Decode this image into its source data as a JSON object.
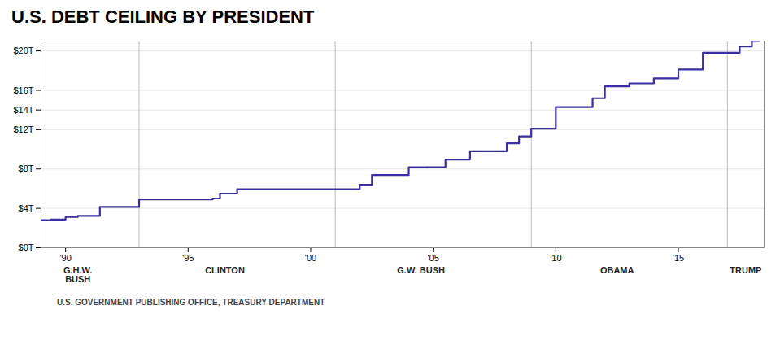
{
  "chart_data": {
    "type": "line",
    "line_style": "step",
    "title": "U.S. DEBT CEILING BY PRESIDENT",
    "source": "U.S. GOVERNMENT PUBLISHING OFFICE, TREASURY DEPARTMENT",
    "color": "#3a2fa0",
    "grid": "y",
    "x": [
      1989.0,
      1989.4,
      1990.0,
      1990.5,
      1991.0,
      1991.4,
      1992.0,
      1992.5,
      1993.0,
      1993.0,
      1993.5,
      1994.0,
      1995.0,
      1995.5,
      1996.0,
      1996.3,
      1997.0,
      1997.5,
      1998.0,
      1999.0,
      2000.0,
      2001.0,
      2001.0,
      2002.0,
      2002.5,
      2003.0,
      2003.5,
      2004.0,
      2004.5,
      2004.8,
      2005.0,
      2005.5,
      2006.0,
      2006.5,
      2007.0,
      2007.5,
      2008.0,
      2008.5,
      2008.9,
      2009.0,
      2009.3,
      2009.6,
      2010.0,
      2010.3,
      2011.0,
      2011.5,
      2012.0,
      2012.3,
      2013.0,
      2013.5,
      2014.0,
      2014.5,
      2015.0,
      2015.5,
      2016.0,
      2016.5,
      2017.0,
      2017.2,
      2017.5,
      2018.0,
      2018.3
    ],
    "values": [
      2.8,
      2.87,
      3.123,
      3.23,
      3.23,
      4.145,
      4.145,
      4.145,
      4.145,
      4.9,
      4.9,
      4.9,
      4.9,
      4.9,
      5.0,
      5.5,
      5.95,
      5.95,
      5.95,
      5.95,
      5.95,
      5.95,
      5.95,
      6.4,
      7.384,
      7.384,
      7.384,
      8.18,
      8.18,
      8.184,
      8.184,
      8.965,
      8.965,
      9.815,
      9.815,
      9.815,
      10.615,
      11.315,
      11.315,
      12.104,
      12.104,
      12.104,
      14.294,
      14.294,
      14.294,
      15.194,
      16.394,
      16.394,
      16.699,
      16.699,
      17.212,
      17.212,
      18.113,
      18.113,
      19.808,
      19.808,
      19.808,
      19.808,
      20.456,
      21.0,
      21.0
    ],
    "xlim": [
      1989.0,
      2018.5
    ],
    "ylim": [
      0,
      21
    ],
    "xticks": [
      {
        "value": 1990,
        "label": "'90"
      },
      {
        "value": 1995,
        "label": "'95"
      },
      {
        "value": 2000,
        "label": "'00"
      },
      {
        "value": 2005,
        "label": "'05"
      },
      {
        "value": 2010,
        "label": "'10"
      },
      {
        "value": 2015,
        "label": "'15"
      }
    ],
    "yticks": [
      {
        "value": 0,
        "label": "$0T"
      },
      {
        "value": 4,
        "label": "$4T"
      },
      {
        "value": 8,
        "label": "$8T"
      },
      {
        "value": 12,
        "label": "$12T"
      },
      {
        "value": 14,
        "label": "$14T"
      },
      {
        "value": 16,
        "label": "$16T"
      },
      {
        "value": 20,
        "label": "$20T"
      }
    ],
    "vlines": [
      1993,
      2001,
      2009,
      2017
    ],
    "annotations": [
      {
        "text": "G.H.W.\nBUSH",
        "x": 1990.5
      },
      {
        "text": "CLINTON",
        "x": 1996.5
      },
      {
        "text": "G.W. BUSH",
        "x": 2004.5
      },
      {
        "text": "OBAMA",
        "x": 2012.5
      },
      {
        "text": "TRUMP",
        "x": 2017.75
      }
    ]
  }
}
